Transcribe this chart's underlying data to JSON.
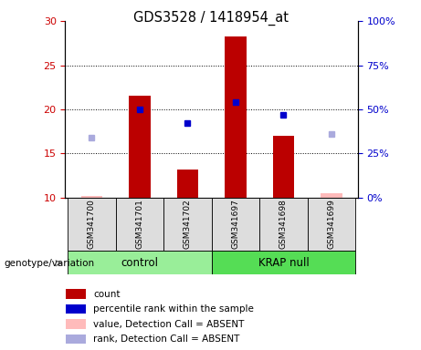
{
  "title": "GDS3528 / 1418954_at",
  "samples": [
    "GSM341700",
    "GSM341701",
    "GSM341702",
    "GSM341697",
    "GSM341698",
    "GSM341699"
  ],
  "bar_values": [
    10.2,
    21.5,
    13.2,
    28.3,
    17.0,
    10.5
  ],
  "bar_absent": [
    true,
    false,
    false,
    false,
    false,
    true
  ],
  "blue_squares": [
    null,
    20.0,
    18.5,
    20.8,
    19.4,
    null
  ],
  "purple_squares": [
    16.8,
    null,
    null,
    null,
    null,
    17.2
  ],
  "ylim": [
    10,
    30
  ],
  "yticks_left": [
    10,
    15,
    20,
    25,
    30
  ],
  "yticks_right": [
    0,
    25,
    50,
    75,
    100
  ],
  "left_tick_color": "#cc0000",
  "right_tick_color": "#0000cc",
  "bar_color": "#bb0000",
  "bar_absent_color": "#ffbbbb",
  "blue_color": "#0000cc",
  "purple_color": "#aaaadd",
  "control_color": "#99ee99",
  "krap_color": "#55dd55",
  "sample_bg": "#dddddd",
  "grid_dotted_color": "#000000",
  "bar_width": 0.45,
  "legend_items": [
    [
      "#bb0000",
      "count"
    ],
    [
      "#0000cc",
      "percentile rank within the sample"
    ],
    [
      "#ffbbbb",
      "value, Detection Call = ABSENT"
    ],
    [
      "#aaaadd",
      "rank, Detection Call = ABSENT"
    ]
  ]
}
